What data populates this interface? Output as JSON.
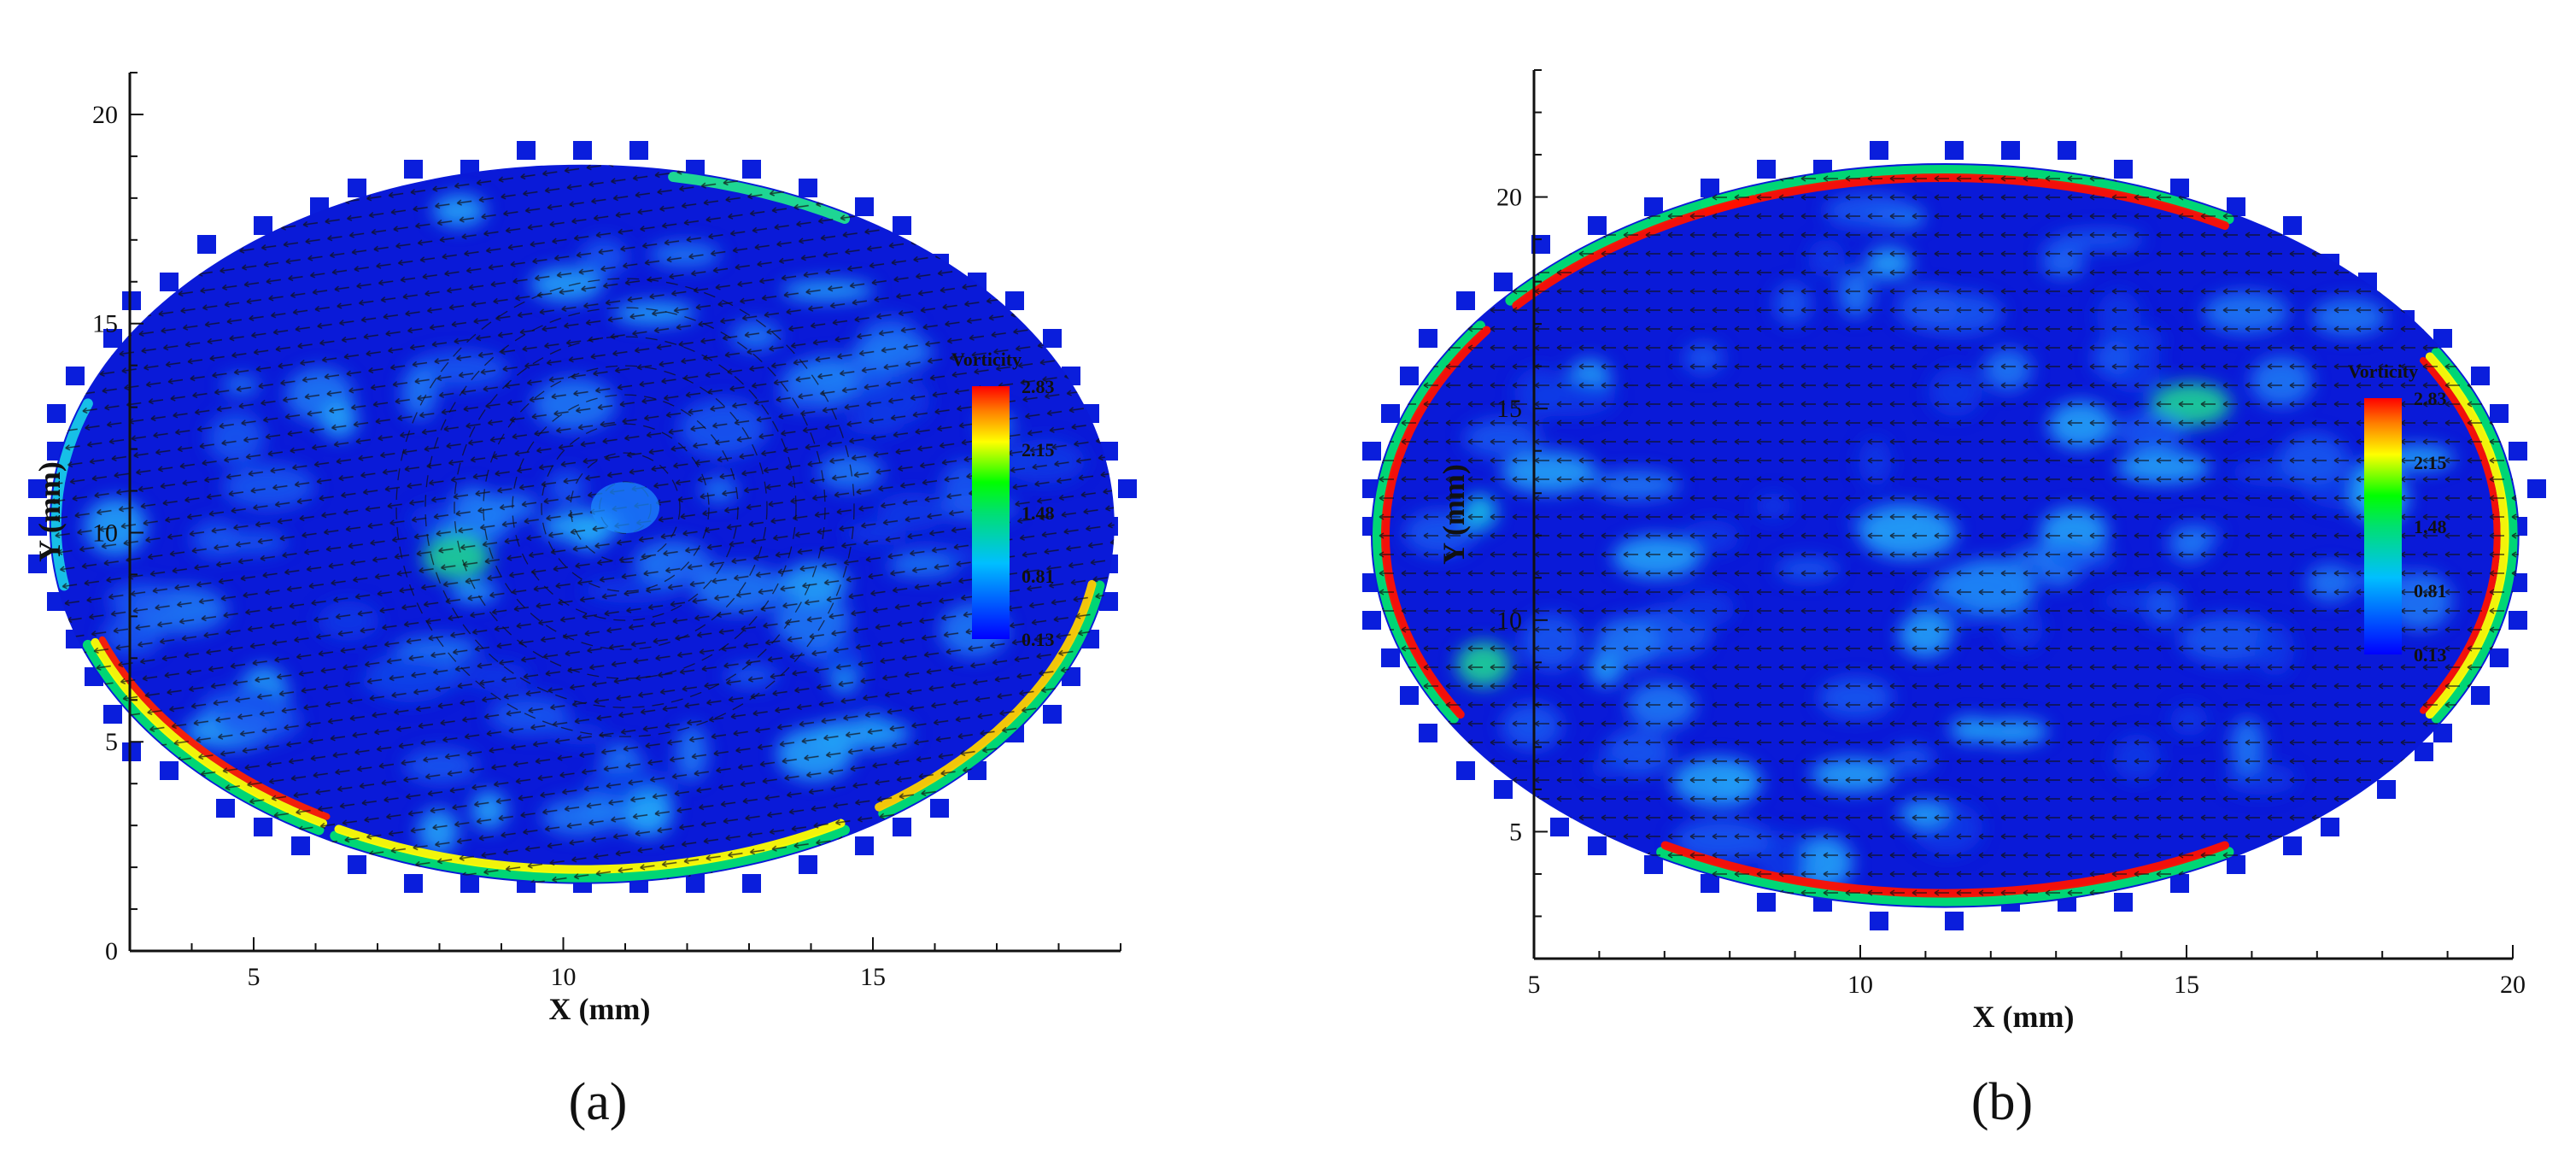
{
  "chart_data": [
    {
      "type": "heatmap",
      "panel_label_parts": [
        "(",
        "a",
        ")"
      ],
      "xlabel": "X (mm)",
      "ylabel": "Y (mm)",
      "xlim": [
        3,
        19
      ],
      "ylim": [
        0,
        21
      ],
      "xticks": [
        5,
        10,
        15
      ],
      "yticks": [
        0,
        5,
        10,
        15,
        20
      ],
      "domain_shape": "circle",
      "domain_center": [
        10.3,
        10.2
      ],
      "domain_radius": 8.6,
      "vortex_center": [
        11.0,
        10.6
      ],
      "high_vorticity_regions": [
        "lower-left rim",
        "bottom rim",
        "right rim"
      ],
      "colorbar": {
        "title": "Vorticity",
        "ticks": [
          "2.83",
          "2.15",
          "1.48",
          "0.81",
          "0.13"
        ],
        "min": 0.13,
        "max": 2.83,
        "colormap": [
          "#0000ff",
          "#00bfff",
          "#00e070",
          "#00ff00",
          "#ffff00",
          "#ff8000",
          "#ff0000"
        ]
      }
    },
    {
      "type": "heatmap",
      "panel_label_parts": [
        "(",
        "b",
        ")"
      ],
      "xlabel": "X (mm)",
      "ylabel": "Y (mm)",
      "xlim": [
        5,
        20
      ],
      "ylim": [
        2,
        23
      ],
      "xticks": [
        5,
        10,
        15,
        20
      ],
      "yticks": [
        5,
        10,
        15,
        20
      ],
      "domain_shape": "circle",
      "domain_center": [
        11.3,
        12.0
      ],
      "domain_radius": 8.8,
      "flow_direction": "right-to-left",
      "high_vorticity_regions": [
        "upper rim",
        "left rim",
        "right rim",
        "bottom rim"
      ],
      "colorbar": {
        "title": "Vorticity",
        "ticks": [
          "2.83",
          "2.15",
          "1.48",
          "0.81",
          "0.13"
        ],
        "min": 0.13,
        "max": 2.83,
        "colormap": [
          "#0000ff",
          "#00bfff",
          "#00e070",
          "#00ff00",
          "#ffff00",
          "#ff8000",
          "#ff0000"
        ]
      }
    }
  ]
}
